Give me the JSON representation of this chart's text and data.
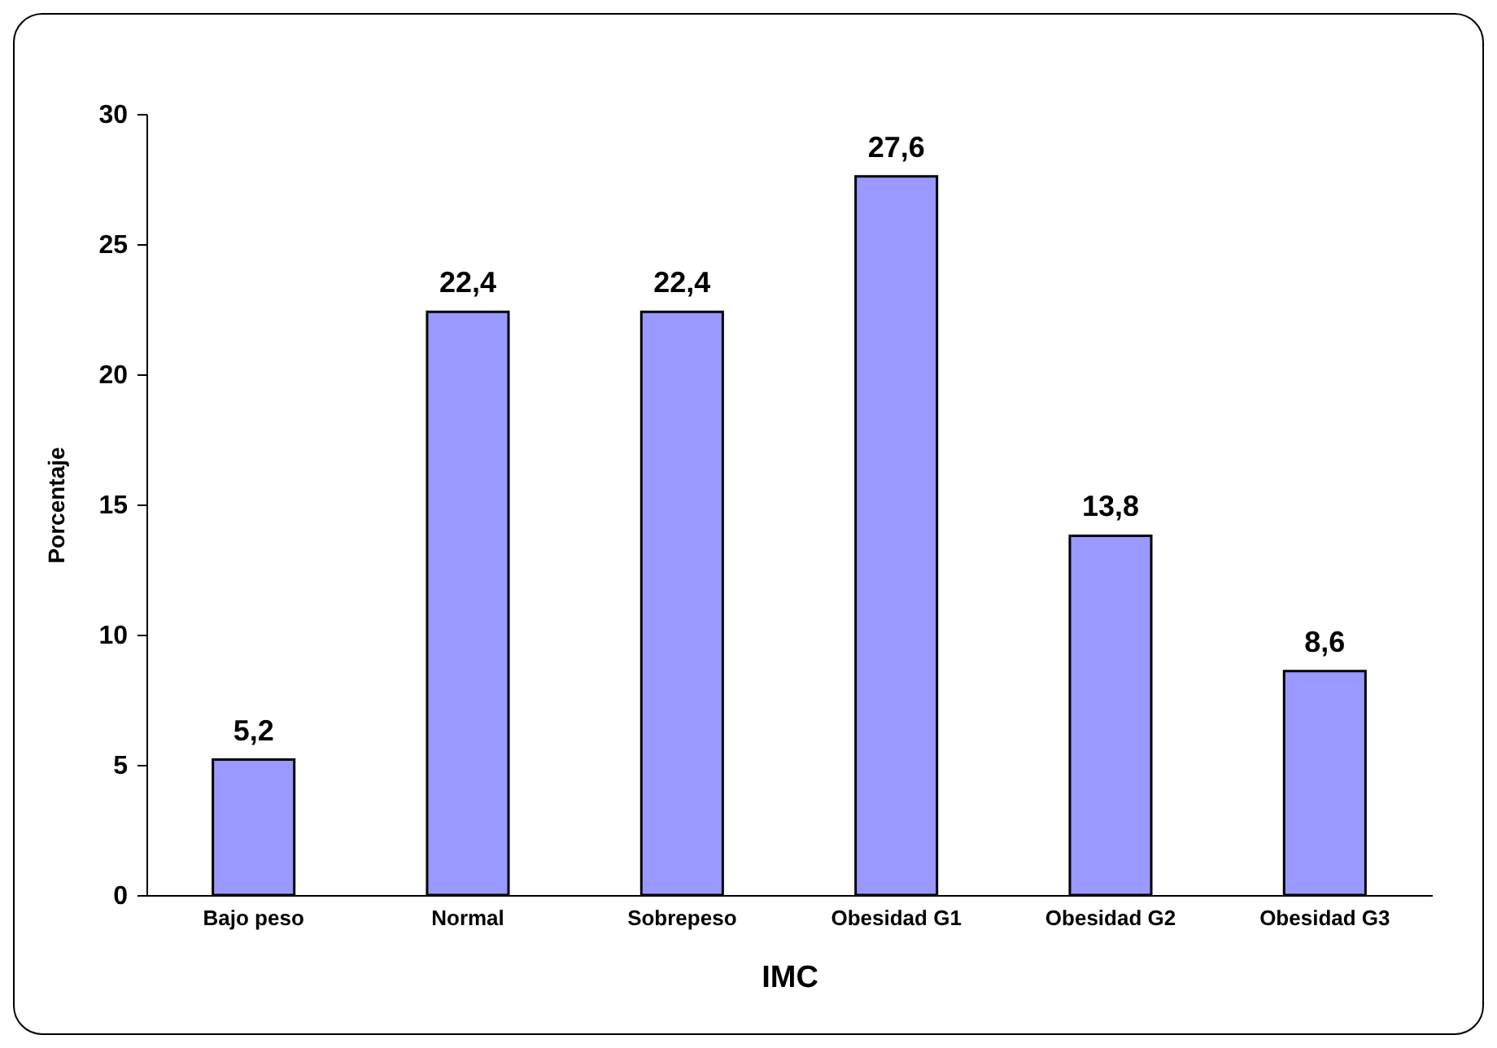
{
  "chart_data": {
    "type": "bar",
    "xlabel": "IMC",
    "ylabel": "Porcentaje",
    "categories": [
      "Bajo peso",
      "Normal",
      "Sobrepeso",
      "Obesidad G1",
      "Obesidad G2",
      "Obesidad G3"
    ],
    "values": [
      5.2,
      22.4,
      22.4,
      27.6,
      13.8,
      8.6
    ],
    "value_labels": [
      "5,2",
      "22,4",
      "22,4",
      "27,6",
      "13,8",
      "8,6"
    ],
    "color": "#9999ff",
    "ylim": [
      0,
      30
    ],
    "yticks": [
      0,
      5,
      10,
      15,
      20,
      25,
      30
    ]
  }
}
